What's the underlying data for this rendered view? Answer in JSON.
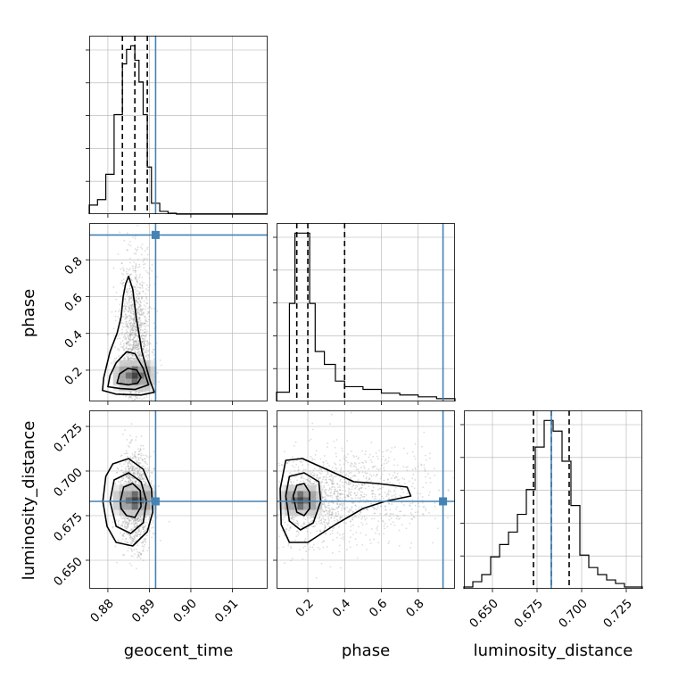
{
  "chart_data": {
    "type": "corner",
    "parameters": [
      "geocent_time",
      "phase",
      "luminosity_distance"
    ],
    "truths": {
      "geocent_time": 0.8915,
      "phase": 0.935,
      "luminosity_distance": 0.683
    },
    "colors": {
      "truth": "#4682b4",
      "hist": "#000000",
      "grid": "#b0b0b0",
      "samples": "#9a9a9a"
    },
    "marginals": [
      {
        "parameter": "geocent_time",
        "xlim": [
          0.8755,
          0.9185
        ],
        "xticks": [
          0.88,
          0.89,
          0.9,
          0.91
        ],
        "xtick_labels": [
          "0.88",
          "0.89",
          "0.90",
          "0.91"
        ],
        "quantiles": [
          0.8835,
          0.8865,
          0.8895
        ],
        "bins": [
          0.8755,
          0.8775,
          0.8795,
          0.8815,
          0.8835,
          0.8845,
          0.8855,
          0.8865,
          0.8875,
          0.8885,
          0.8895,
          0.8905,
          0.8925,
          0.8945,
          0.8965,
          0.9185
        ],
        "heights": [
          0.05,
          0.08,
          0.22,
          0.55,
          0.83,
          0.91,
          0.93,
          0.85,
          0.73,
          0.55,
          0.26,
          0.06,
          0.015,
          0.005,
          0.0
        ]
      },
      {
        "parameter": "phase",
        "xlim": [
          0.03,
          1.0
        ],
        "xticks": [
          0.2,
          0.4,
          0.6,
          0.8
        ],
        "xtick_labels": [
          "0.2",
          "0.4",
          "0.6",
          "0.8"
        ],
        "quantiles": [
          0.14,
          0.2,
          0.4
        ],
        "bins": [
          0.03,
          0.1,
          0.13,
          0.21,
          0.24,
          0.29,
          0.35,
          0.4,
          0.5,
          0.6,
          0.7,
          0.8,
          0.9,
          1.0
        ],
        "heights": [
          0.05,
          0.53,
          0.91,
          0.53,
          0.27,
          0.2,
          0.11,
          0.08,
          0.065,
          0.045,
          0.035,
          0.025,
          0.015
        ]
      },
      {
        "parameter": "luminosity_distance",
        "xlim": [
          0.634,
          0.734
        ],
        "xticks": [
          0.65,
          0.675,
          0.7,
          0.725
        ],
        "xtick_labels": [
          "0.650",
          "0.675",
          "0.700",
          "0.725"
        ],
        "quantiles": [
          0.673,
          0.683,
          0.693
        ],
        "bins": [
          0.634,
          0.639,
          0.644,
          0.649,
          0.654,
          0.659,
          0.664,
          0.669,
          0.674,
          0.679,
          0.684,
          0.689,
          0.694,
          0.699,
          0.704,
          0.709,
          0.714,
          0.719,
          0.724,
          0.734
        ],
        "heights": [
          0.01,
          0.04,
          0.08,
          0.18,
          0.25,
          0.32,
          0.42,
          0.56,
          0.8,
          0.95,
          0.89,
          0.72,
          0.47,
          0.19,
          0.12,
          0.08,
          0.05,
          0.03,
          0.01
        ]
      }
    ],
    "joint": [
      {
        "x": "geocent_time",
        "y": "phase",
        "xlim": [
          0.8755,
          0.9185
        ],
        "ylim": [
          0.03,
          1.0
        ],
        "yticks": [
          0.2,
          0.4,
          0.6,
          0.8
        ],
        "ytick_labels": [
          "0.2",
          "0.4",
          "0.6",
          "0.8"
        ],
        "contours": [
          [
            [
              0.8787,
              0.09
            ],
            [
              0.879,
              0.16
            ],
            [
              0.8805,
              0.3
            ],
            [
              0.8822,
              0.4
            ],
            [
              0.8832,
              0.49
            ],
            [
              0.8837,
              0.6
            ],
            [
              0.8843,
              0.67
            ],
            [
              0.885,
              0.71
            ],
            [
              0.886,
              0.64
            ],
            [
              0.8868,
              0.49
            ],
            [
              0.8882,
              0.3
            ],
            [
              0.8902,
              0.14
            ],
            [
              0.8912,
              0.08
            ],
            [
              0.888,
              0.065
            ],
            [
              0.882,
              0.07
            ]
          ],
          [
            [
              0.88,
              0.11
            ],
            [
              0.8805,
              0.17
            ],
            [
              0.882,
              0.24
            ],
            [
              0.8845,
              0.3
            ],
            [
              0.8865,
              0.29
            ],
            [
              0.8885,
              0.21
            ],
            [
              0.8898,
              0.12
            ],
            [
              0.8865,
              0.095
            ],
            [
              0.883,
              0.1
            ]
          ],
          [
            [
              0.8822,
              0.13
            ],
            [
              0.8828,
              0.18
            ],
            [
              0.8848,
              0.21
            ],
            [
              0.887,
              0.2
            ],
            [
              0.888,
              0.16
            ],
            [
              0.8872,
              0.13
            ],
            [
              0.885,
              0.12
            ]
          ]
        ],
        "density_peak": [
          0.8865,
          0.17
        ]
      },
      {
        "x": "geocent_time",
        "y": "luminosity_distance",
        "xlim": [
          0.8755,
          0.9185
        ],
        "ylim": [
          0.634,
          0.734
        ],
        "yticks": [
          0.65,
          0.675,
          0.7,
          0.725
        ],
        "ytick_labels": [
          "0.650",
          "0.675",
          "0.700",
          "0.725"
        ],
        "contours": [
          [
            [
              0.8788,
              0.683
            ],
            [
              0.8795,
              0.697
            ],
            [
              0.8812,
              0.704
            ],
            [
              0.885,
              0.707
            ],
            [
              0.8885,
              0.701
            ],
            [
              0.8905,
              0.69
            ],
            [
              0.8908,
              0.677
            ],
            [
              0.8895,
              0.666
            ],
            [
              0.886,
              0.658
            ],
            [
              0.882,
              0.66
            ],
            [
              0.8798,
              0.669
            ]
          ],
          [
            [
              0.8805,
              0.683
            ],
            [
              0.8815,
              0.695
            ],
            [
              0.885,
              0.699
            ],
            [
              0.888,
              0.694
            ],
            [
              0.8893,
              0.683
            ],
            [
              0.8885,
              0.671
            ],
            [
              0.8855,
              0.665
            ],
            [
              0.882,
              0.669
            ]
          ],
          [
            [
              0.883,
              0.683
            ],
            [
              0.8838,
              0.691
            ],
            [
              0.886,
              0.693
            ],
            [
              0.8878,
              0.689
            ],
            [
              0.888,
              0.68
            ],
            [
              0.8865,
              0.674
            ],
            [
              0.8845,
              0.675
            ],
            [
              0.8832,
              0.679
            ]
          ]
        ],
        "density_peak": [
          0.8865,
          0.6835
        ]
      },
      {
        "x": "phase",
        "y": "luminosity_distance",
        "xlim": [
          0.03,
          1.0
        ],
        "ylim": [
          0.634,
          0.734
        ],
        "contours": [
          [
            [
              0.05,
              0.69
            ],
            [
              0.08,
              0.706
            ],
            [
              0.17,
              0.707
            ],
            [
              0.3,
              0.701
            ],
            [
              0.45,
              0.694
            ],
            [
              0.58,
              0.693
            ],
            [
              0.74,
              0.691
            ],
            [
              0.76,
              0.686
            ],
            [
              0.62,
              0.683
            ],
            [
              0.5,
              0.679
            ],
            [
              0.35,
              0.67
            ],
            [
              0.2,
              0.66
            ],
            [
              0.1,
              0.66
            ],
            [
              0.055,
              0.67
            ]
          ],
          [
            [
              0.08,
              0.686
            ],
            [
              0.1,
              0.697
            ],
            [
              0.18,
              0.699
            ],
            [
              0.26,
              0.694
            ],
            [
              0.27,
              0.683
            ],
            [
              0.23,
              0.671
            ],
            [
              0.16,
              0.667
            ],
            [
              0.1,
              0.672
            ]
          ],
          [
            [
              0.12,
              0.686
            ],
            [
              0.14,
              0.692
            ],
            [
              0.18,
              0.693
            ],
            [
              0.21,
              0.688
            ],
            [
              0.21,
              0.679
            ],
            [
              0.18,
              0.675
            ],
            [
              0.14,
              0.677
            ]
          ]
        ],
        "density_peak": [
          0.16,
          0.6835
        ]
      }
    ],
    "bottom_labels": [
      "geocent_time",
      "phase",
      "luminosity_distance"
    ],
    "left_labels": [
      "phase",
      "luminosity_distance"
    ]
  }
}
